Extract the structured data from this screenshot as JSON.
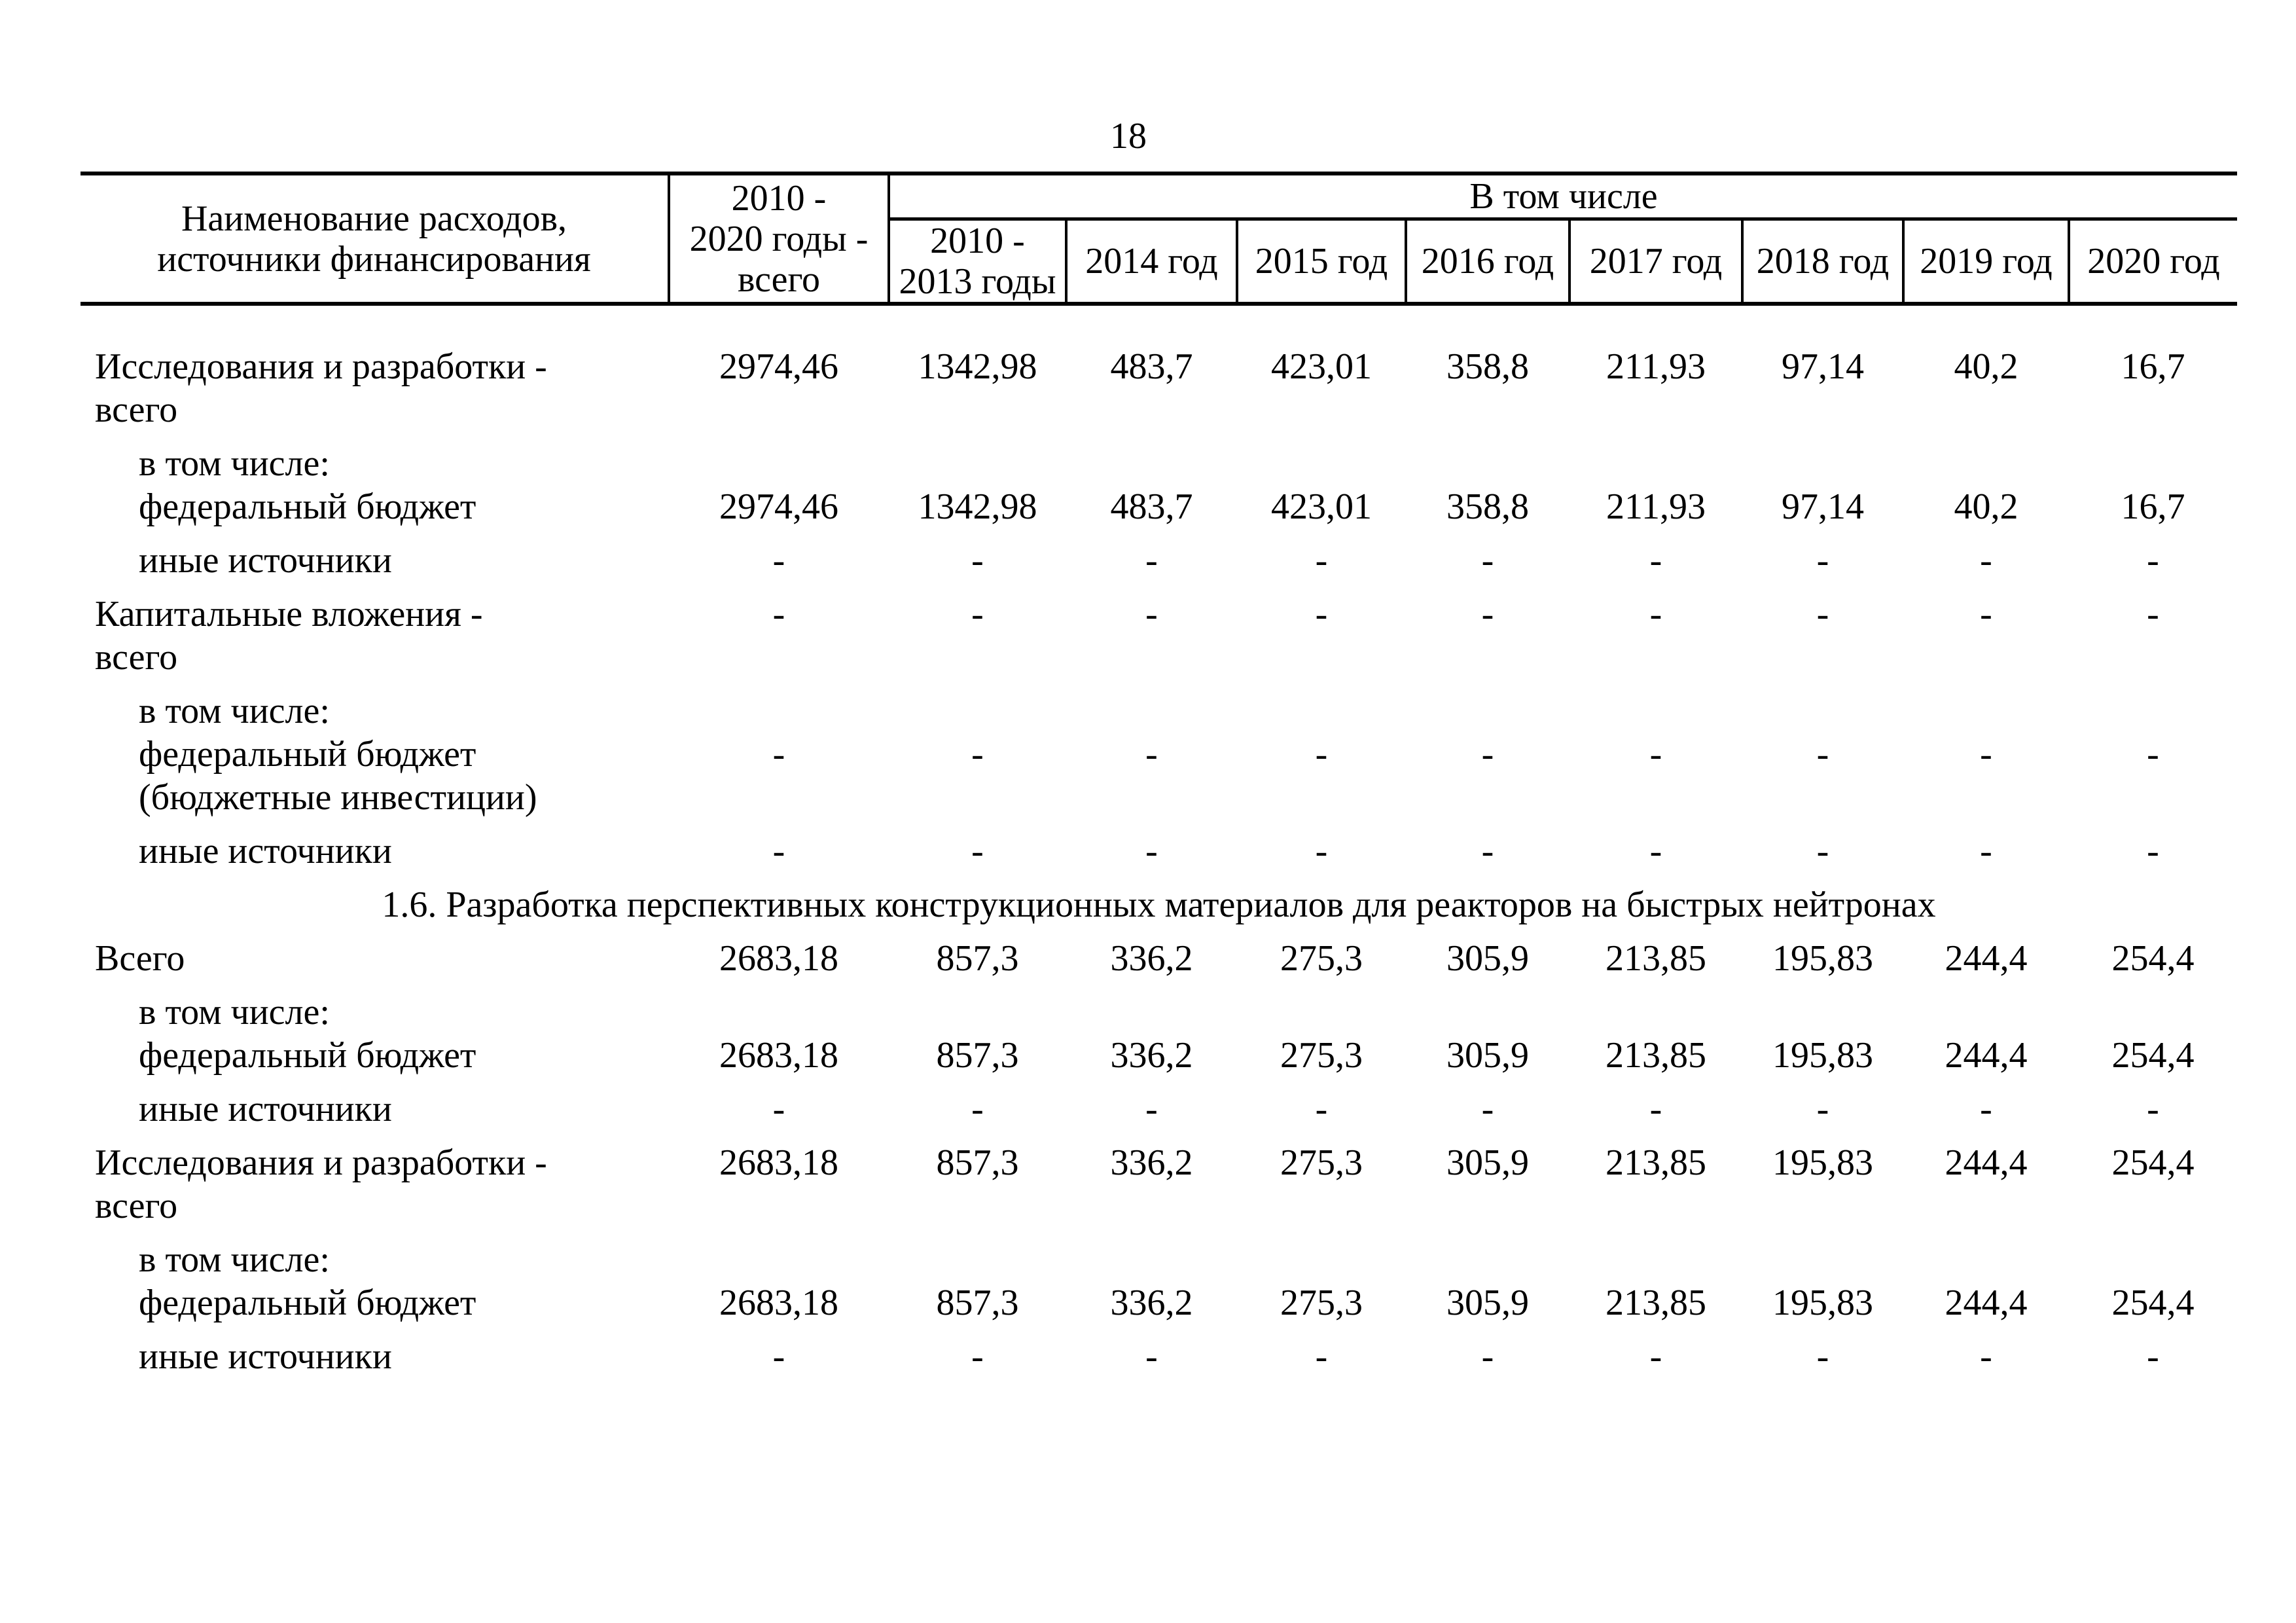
{
  "page_number": "18",
  "colors": {
    "ink": "#000000",
    "paper": "#ffffff"
  },
  "table": {
    "header": {
      "name_col": [
        "Наименование расходов,",
        "источники финансирования"
      ],
      "total_col": [
        "2010 -",
        "2020 годы -",
        "всего"
      ],
      "group_label": "В том числе",
      "sub_first": [
        "2010 -",
        "2013 годы"
      ],
      "years": [
        "2014 год",
        "2015 год",
        "2016 год",
        "2017 год",
        "2018 год",
        "2019 год",
        "2020 год"
      ]
    },
    "rows": [
      {
        "type": "data",
        "indent": 0,
        "values_line": 1,
        "label_lines": [
          "Исследования и разработки -",
          "всего"
        ],
        "values": [
          "2974,46",
          "1342,98",
          "483,7",
          "423,01",
          "358,8",
          "211,93",
          "97,14",
          "40,2",
          "16,7"
        ]
      },
      {
        "type": "data",
        "indent": 1,
        "values_line": 2,
        "label_lines": [
          "в том числе:",
          "федеральный бюджет"
        ],
        "values": [
          "2974,46",
          "1342,98",
          "483,7",
          "423,01",
          "358,8",
          "211,93",
          "97,14",
          "40,2",
          "16,7"
        ]
      },
      {
        "type": "data",
        "indent": 1,
        "values_line": 1,
        "label_lines": [
          "иные источники"
        ],
        "values": [
          "-",
          "-",
          "-",
          "-",
          "-",
          "-",
          "-",
          "-",
          "-"
        ]
      },
      {
        "type": "data",
        "indent": 0,
        "values_line": 1,
        "label_lines": [
          "Капитальные вложения -",
          "всего"
        ],
        "values": [
          "-",
          "-",
          "-",
          "-",
          "-",
          "-",
          "-",
          "-",
          "-"
        ]
      },
      {
        "type": "data",
        "indent": 1,
        "values_line": 2,
        "label_lines": [
          "в том числе:",
          "федеральный бюджет",
          "(бюджетные инвестиции)"
        ],
        "values": [
          "-",
          "-",
          "-",
          "-",
          "-",
          "-",
          "-",
          "-",
          "-"
        ]
      },
      {
        "type": "data",
        "indent": 1,
        "values_line": 1,
        "label_lines": [
          "иные источники"
        ],
        "values": [
          "-",
          "-",
          "-",
          "-",
          "-",
          "-",
          "-",
          "-",
          "-"
        ]
      },
      {
        "type": "section",
        "title": "1.6. Разработка перспективных конструкционных материалов для реакторов на быстрых нейтронах"
      },
      {
        "type": "data",
        "indent": 0,
        "values_line": 1,
        "label_lines": [
          "Всего"
        ],
        "values": [
          "2683,18",
          "857,3",
          "336,2",
          "275,3",
          "305,9",
          "213,85",
          "195,83",
          "244,4",
          "254,4"
        ]
      },
      {
        "type": "data",
        "indent": 1,
        "values_line": 2,
        "label_lines": [
          "в том числе:",
          "федеральный бюджет"
        ],
        "values": [
          "2683,18",
          "857,3",
          "336,2",
          "275,3",
          "305,9",
          "213,85",
          "195,83",
          "244,4",
          "254,4"
        ]
      },
      {
        "type": "data",
        "indent": 1,
        "values_line": 1,
        "label_lines": [
          "иные источники"
        ],
        "values": [
          "-",
          "-",
          "-",
          "-",
          "-",
          "-",
          "-",
          "-",
          "-"
        ]
      },
      {
        "type": "data",
        "indent": 0,
        "values_line": 1,
        "label_lines": [
          "Исследования и разработки -",
          "всего"
        ],
        "values": [
          "2683,18",
          "857,3",
          "336,2",
          "275,3",
          "305,9",
          "213,85",
          "195,83",
          "244,4",
          "254,4"
        ]
      },
      {
        "type": "data",
        "indent": 1,
        "values_line": 2,
        "label_lines": [
          "в том числе:",
          "федеральный бюджет"
        ],
        "values": [
          "2683,18",
          "857,3",
          "336,2",
          "275,3",
          "305,9",
          "213,85",
          "195,83",
          "244,4",
          "254,4"
        ]
      },
      {
        "type": "data",
        "indent": 1,
        "values_line": 1,
        "label_lines": [
          "иные источники"
        ],
        "values": [
          "-",
          "-",
          "-",
          "-",
          "-",
          "-",
          "-",
          "-",
          "-"
        ]
      }
    ]
  }
}
